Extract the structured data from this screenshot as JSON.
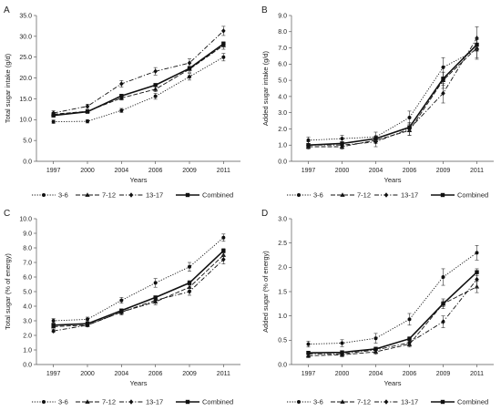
{
  "chart_data": [
    {
      "panel": "A",
      "type": "line",
      "ylabel": "Total sugar intake (g/d)",
      "xlabel": "Years",
      "categories": [
        "1997",
        "2000",
        "2004",
        "2006",
        "2009",
        "2011"
      ],
      "ylim": [
        0,
        35
      ],
      "ystep": 5,
      "ydecimals": 1,
      "series": [
        {
          "name": "3-6",
          "values": [
            9.5,
            9.6,
            12.2,
            15.6,
            20.3,
            25.0
          ],
          "err": [
            0.4,
            0.4,
            0.5,
            0.7,
            0.8,
            0.9
          ]
        },
        {
          "name": "7-12",
          "values": [
            11.3,
            12.0,
            15.2,
            17.3,
            22.1,
            27.8
          ],
          "err": [
            0.4,
            0.4,
            0.5,
            0.6,
            0.7,
            0.9
          ]
        },
        {
          "name": "13-17",
          "values": [
            11.6,
            13.2,
            18.6,
            21.6,
            23.6,
            31.3
          ],
          "err": [
            0.5,
            0.5,
            0.8,
            0.9,
            1.0,
            1.1
          ]
        },
        {
          "name": "Combined",
          "values": [
            11.0,
            11.9,
            15.7,
            18.3,
            22.3,
            28.2
          ],
          "err": [
            0.2,
            0.2,
            0.3,
            0.3,
            0.4,
            0.5
          ]
        }
      ]
    },
    {
      "panel": "B",
      "type": "line",
      "ylabel": "Added sugar intake (g/d)",
      "xlabel": "Years",
      "categories": [
        "1997",
        "2000",
        "2004",
        "2006",
        "2009",
        "2011"
      ],
      "ylim": [
        0,
        9
      ],
      "ystep": 1,
      "ydecimals": 1,
      "series": [
        {
          "name": "3-6",
          "values": [
            1.3,
            1.4,
            1.5,
            2.7,
            5.8,
            6.9
          ],
          "err": [
            0.2,
            0.2,
            0.3,
            0.4,
            0.6,
            0.6
          ]
        },
        {
          "name": "7-12",
          "values": [
            0.9,
            0.9,
            1.3,
            1.9,
            5.0,
            7.0
          ],
          "err": [
            0.15,
            0.15,
            0.2,
            0.3,
            0.5,
            0.6
          ]
        },
        {
          "name": "13-17",
          "values": [
            1.0,
            1.0,
            1.2,
            2.0,
            4.2,
            7.6
          ],
          "err": [
            0.2,
            0.2,
            0.3,
            0.4,
            0.6,
            0.7
          ]
        },
        {
          "name": "Combined",
          "values": [
            1.0,
            1.1,
            1.4,
            2.1,
            5.1,
            7.2
          ],
          "err": [
            0.1,
            0.1,
            0.15,
            0.2,
            0.4,
            0.4
          ]
        }
      ]
    },
    {
      "panel": "C",
      "type": "line",
      "ylabel": "Total sugar (% of energy)",
      "xlabel": "Years",
      "categories": [
        "1997",
        "2000",
        "2004",
        "2006",
        "2009",
        "2011"
      ],
      "ylim": [
        0,
        10
      ],
      "ystep": 1,
      "ydecimals": 1,
      "series": [
        {
          "name": "3-6",
          "values": [
            3.0,
            3.1,
            4.4,
            5.6,
            6.7,
            8.7
          ],
          "err": [
            0.15,
            0.15,
            0.2,
            0.3,
            0.3,
            0.25
          ]
        },
        {
          "name": "7-12",
          "values": [
            2.6,
            2.7,
            3.6,
            4.3,
            5.3,
            7.5
          ],
          "err": [
            0.1,
            0.1,
            0.15,
            0.2,
            0.2,
            0.3
          ]
        },
        {
          "name": "13-17",
          "values": [
            2.3,
            2.7,
            3.6,
            4.4,
            5.0,
            7.2
          ],
          "err": [
            0.1,
            0.1,
            0.2,
            0.2,
            0.25,
            0.3
          ]
        },
        {
          "name": "Combined",
          "values": [
            2.7,
            2.8,
            3.7,
            4.6,
            5.6,
            7.8
          ],
          "err": [
            0.05,
            0.05,
            0.1,
            0.1,
            0.15,
            0.15
          ]
        }
      ]
    },
    {
      "panel": "D",
      "type": "line",
      "ylabel": "Added sugar (% of energy)",
      "xlabel": "Years",
      "categories": [
        "1997",
        "2000",
        "2004",
        "2006",
        "2009",
        "2011"
      ],
      "ylim": [
        0,
        3
      ],
      "ystep": 0.5,
      "ydecimals": 1,
      "series": [
        {
          "name": "3-6",
          "values": [
            0.42,
            0.44,
            0.54,
            0.93,
            1.8,
            2.3
          ],
          "err": [
            0.06,
            0.07,
            0.1,
            0.12,
            0.17,
            0.15
          ]
        },
        {
          "name": "7-12",
          "values": [
            0.18,
            0.2,
            0.26,
            0.42,
            1.25,
            1.6
          ],
          "err": [
            0.04,
            0.04,
            0.05,
            0.06,
            0.1,
            0.12
          ]
        },
        {
          "name": "13-17",
          "values": [
            0.22,
            0.22,
            0.3,
            0.45,
            0.88,
            1.75
          ],
          "err": [
            0.04,
            0.05,
            0.06,
            0.07,
            0.12,
            0.17
          ]
        },
        {
          "name": "Combined",
          "values": [
            0.24,
            0.25,
            0.32,
            0.53,
            1.25,
            1.9
          ],
          "err": [
            0.02,
            0.02,
            0.03,
            0.04,
            0.06,
            0.07
          ]
        }
      ]
    }
  ]
}
